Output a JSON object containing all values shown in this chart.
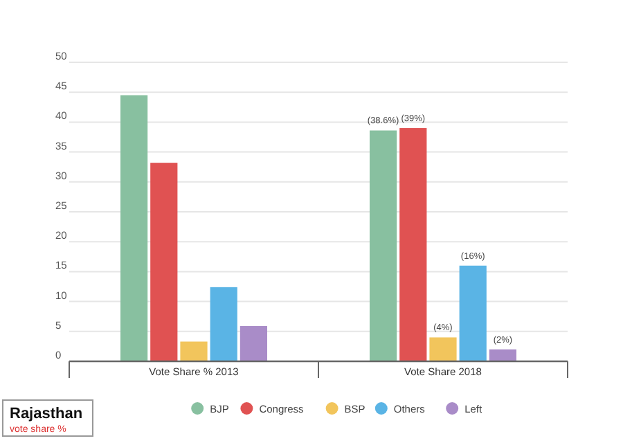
{
  "chart_data": {
    "type": "bar",
    "categories": [
      "Vote Share % 2013",
      "Vote Share 2018"
    ],
    "series": [
      {
        "name": "BJP",
        "color": "#88c0a0",
        "values": [
          44.5,
          38.6
        ],
        "value_labels": [
          null,
          "(38.6%)"
        ]
      },
      {
        "name": "Congress",
        "color": "#e05252",
        "values": [
          33.2,
          39
        ],
        "value_labels": [
          null,
          "(39%)"
        ]
      },
      {
        "name": "BSP",
        "color": "#f2c55c",
        "values": [
          3.3,
          4
        ],
        "value_labels": [
          null,
          "(4%)"
        ]
      },
      {
        "name": "Others",
        "color": "#5ab4e5",
        "values": [
          12.4,
          16
        ],
        "value_labels": [
          null,
          "(16%)"
        ]
      },
      {
        "name": "Left",
        "color": "#a98cc8",
        "values": [
          5.9,
          2
        ],
        "value_labels": [
          null,
          "(2%)"
        ]
      }
    ],
    "ylim": [
      0,
      50
    ],
    "yticks": [
      0,
      5,
      10,
      15,
      20,
      25,
      30,
      35,
      40,
      45,
      50
    ],
    "grid": "y",
    "legend": "bottom",
    "annotations": [
      "Rajasthan",
      "vote share %"
    ]
  }
}
